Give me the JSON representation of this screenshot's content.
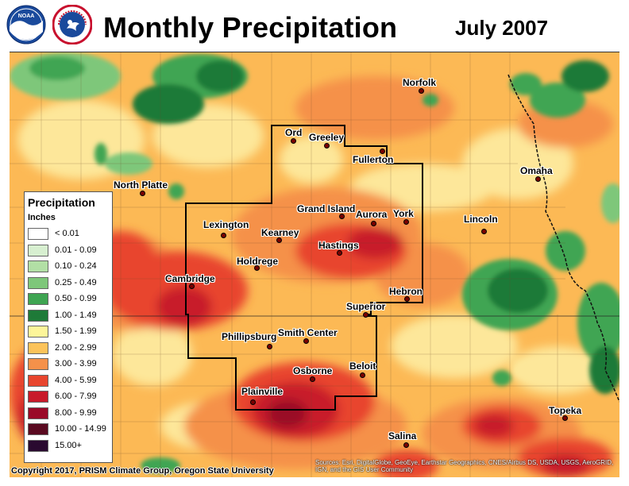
{
  "header": {
    "title": "Monthly Precipitation",
    "date": "July 2007"
  },
  "logos": [
    {
      "name": "noaa-logo",
      "text": "NOAA"
    },
    {
      "name": "nws-logo",
      "text": "NATIONAL WEATHER SERVICE"
    }
  ],
  "legend": {
    "title": "Precipitation",
    "units": "Inches",
    "items": [
      {
        "label": "< 0.01",
        "color": "#ffffff"
      },
      {
        "label": "0.01 - 0.09",
        "color": "#d7efd0"
      },
      {
        "label": "0.10 - 0.24",
        "color": "#b2dfa5"
      },
      {
        "label": "0.25 - 0.49",
        "color": "#7ec77a"
      },
      {
        "label": "0.50 - 0.99",
        "color": "#3fa552"
      },
      {
        "label": "1.00 - 1.49",
        "color": "#1e7a38"
      },
      {
        "label": "1.50 - 1.99",
        "color": "#fdf59a"
      },
      {
        "label": "2.00 - 2.99",
        "color": "#fcc35a"
      },
      {
        "label": "3.00 - 3.99",
        "color": "#f5914a"
      },
      {
        "label": "4.00 - 5.99",
        "color": "#e8452e"
      },
      {
        "label": "6.00 - 7.99",
        "color": "#c81a2a"
      },
      {
        "label": "8.00 - 9.99",
        "color": "#9a0a28"
      },
      {
        "label": "10.00 - 14.99",
        "color": "#5a0a20"
      },
      {
        "label": "15.00+",
        "color": "#2a0a30"
      }
    ]
  },
  "cities": [
    {
      "name": "Norfolk"
    },
    {
      "name": "Ord"
    },
    {
      "name": "Greeley"
    },
    {
      "name": "Fullerton"
    },
    {
      "name": "Omaha"
    },
    {
      "name": "North Platte"
    },
    {
      "name": "Grand Island"
    },
    {
      "name": "Aurora"
    },
    {
      "name": "York"
    },
    {
      "name": "Lincoln"
    },
    {
      "name": "Lexington"
    },
    {
      "name": "Kearney"
    },
    {
      "name": "Hastings"
    },
    {
      "name": "Holdrege"
    },
    {
      "name": "Cambridge"
    },
    {
      "name": "Hebron"
    },
    {
      "name": "Superior"
    },
    {
      "name": "Phillipsburg"
    },
    {
      "name": "Smith Center"
    },
    {
      "name": "Beloit"
    },
    {
      "name": "Osborne"
    },
    {
      "name": "Plainville"
    },
    {
      "name": "Topeka"
    },
    {
      "name": "Salina"
    }
  ],
  "footer": {
    "copyright": "Copyright 2017, PRISM Climate Group, Oregon State University",
    "sources": "Sources: Esri, DigitalGlobe, GeoEye, Earthstar Geographics, CNES/Airbus DS, USDA, USGS, AeroGRID, IGN, and the GIS User Community"
  }
}
